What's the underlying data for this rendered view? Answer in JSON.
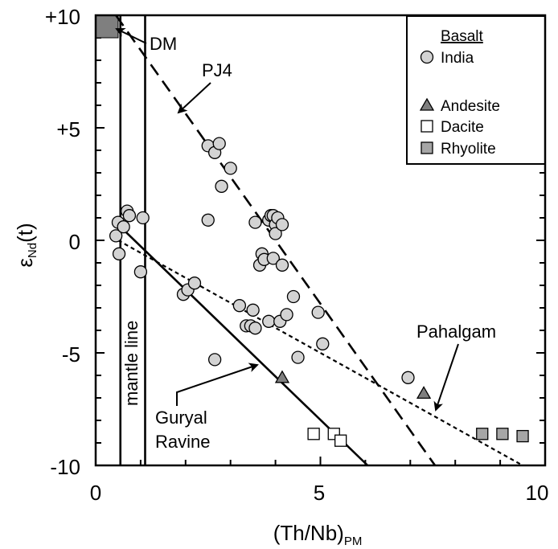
{
  "chart_data": {
    "type": "scatter",
    "xlabel": "(Th/Nb)",
    "xlabel_sub": "PM",
    "ylabel": "ε",
    "ylabel_sub": "Nd",
    "ylabel_suffix": "(t)",
    "xlim": [
      0,
      10
    ],
    "ylim": [
      -10,
      10
    ],
    "x_ticks": [
      0,
      5,
      10
    ],
    "x_tick_labels": [
      "0",
      "5",
      "10"
    ],
    "y_ticks": [
      -10,
      -5,
      0,
      5,
      10
    ],
    "y_tick_labels": [
      "-10",
      "-5",
      "0",
      "+5",
      "+10"
    ],
    "grid": false,
    "legend": {
      "placement": "top-right",
      "header": "Basalt",
      "entries": [
        {
          "label": "India",
          "marker": "circle",
          "color": "#d3d3d3"
        },
        {
          "label": "Andesite",
          "marker": "triangle",
          "color": "#7f7f7f"
        },
        {
          "label": "Dacite",
          "marker": "square",
          "color": "#ffffff"
        },
        {
          "label": "Rhyolite",
          "marker": "square",
          "color": "#a6a6a6"
        }
      ]
    },
    "series": [
      {
        "name": "India",
        "marker": "circle",
        "color": "#d3d3d3",
        "points": [
          [
            0.45,
            0.2
          ],
          [
            0.5,
            0.8
          ],
          [
            0.52,
            -0.6
          ],
          [
            0.62,
            0.6
          ],
          [
            0.7,
            1.3
          ],
          [
            0.75,
            1.1
          ],
          [
            1.0,
            -1.4
          ],
          [
            1.05,
            1.0
          ],
          [
            1.95,
            -2.4
          ],
          [
            2.05,
            -2.2
          ],
          [
            2.2,
            -1.9
          ],
          [
            2.5,
            4.2
          ],
          [
            2.5,
            0.9
          ],
          [
            2.65,
            3.9
          ],
          [
            2.75,
            4.3
          ],
          [
            2.8,
            2.4
          ],
          [
            2.65,
            -5.3
          ],
          [
            3.0,
            3.2
          ],
          [
            3.2,
            -2.9
          ],
          [
            3.35,
            -3.8
          ],
          [
            3.45,
            -3.8
          ],
          [
            3.5,
            -3.1
          ],
          [
            3.55,
            0.8
          ],
          [
            3.55,
            -3.9
          ],
          [
            3.65,
            -1.1
          ],
          [
            3.7,
            -0.6
          ],
          [
            3.75,
            -0.85
          ],
          [
            3.85,
            -3.6
          ],
          [
            3.85,
            0.9
          ],
          [
            3.9,
            1.1
          ],
          [
            3.95,
            -0.8
          ],
          [
            3.95,
            1.1
          ],
          [
            4.0,
            0.7
          ],
          [
            4.0,
            0.3
          ],
          [
            4.05,
            1.0
          ],
          [
            4.1,
            -3.6
          ],
          [
            4.15,
            0.7
          ],
          [
            4.15,
            -1.1
          ],
          [
            4.25,
            -3.3
          ],
          [
            4.4,
            -2.5
          ],
          [
            4.95,
            -3.2
          ],
          [
            5.05,
            -4.6
          ],
          [
            4.5,
            -5.2
          ],
          [
            6.95,
            -6.1
          ]
        ]
      },
      {
        "name": "Andesite",
        "marker": "triangle",
        "color": "#7f7f7f",
        "points": [
          [
            4.15,
            -6.1
          ],
          [
            7.3,
            -6.8
          ]
        ]
      },
      {
        "name": "Dacite",
        "marker": "square",
        "color": "#ffffff",
        "points": [
          [
            4.85,
            -8.6
          ],
          [
            5.3,
            -8.6
          ],
          [
            5.45,
            -8.9
          ]
        ]
      },
      {
        "name": "Rhyolite",
        "marker": "square",
        "color": "#a6a6a6",
        "points": [
          [
            8.6,
            -8.6
          ],
          [
            9.05,
            -8.6
          ],
          [
            9.5,
            -8.7
          ]
        ]
      }
    ],
    "lines": [
      {
        "name": "mantle-line-left",
        "style": "solid",
        "from": [
          0.55,
          10
        ],
        "to": [
          0.55,
          -10
        ]
      },
      {
        "name": "mantle-line-right",
        "style": "solid",
        "from": [
          1.1,
          10
        ],
        "to": [
          1.1,
          -10
        ]
      },
      {
        "name": "PJ4",
        "style": "dashed",
        "from": [
          0.45,
          10
        ],
        "to": [
          7.55,
          -10
        ]
      },
      {
        "name": "Pahalgam",
        "style": "dotted",
        "from": [
          0.5,
          0
        ],
        "to": [
          9.5,
          -10
        ]
      },
      {
        "name": "Guryal Ravine",
        "style": "solid",
        "from": [
          0.5,
          0.7
        ],
        "to": [
          6.05,
          -10
        ]
      }
    ],
    "dm_box": {
      "x": [
        0,
        0.5
      ],
      "y": [
        9.0,
        10
      ],
      "color": "#7f7f7f"
    },
    "annotations": {
      "dm": "DM",
      "pj4": "PJ4",
      "mantle_line": "mantle line",
      "guryal_line1": "Guryal",
      "guryal_line2": "Ravine",
      "pahalgam": "Pahalgam"
    }
  }
}
